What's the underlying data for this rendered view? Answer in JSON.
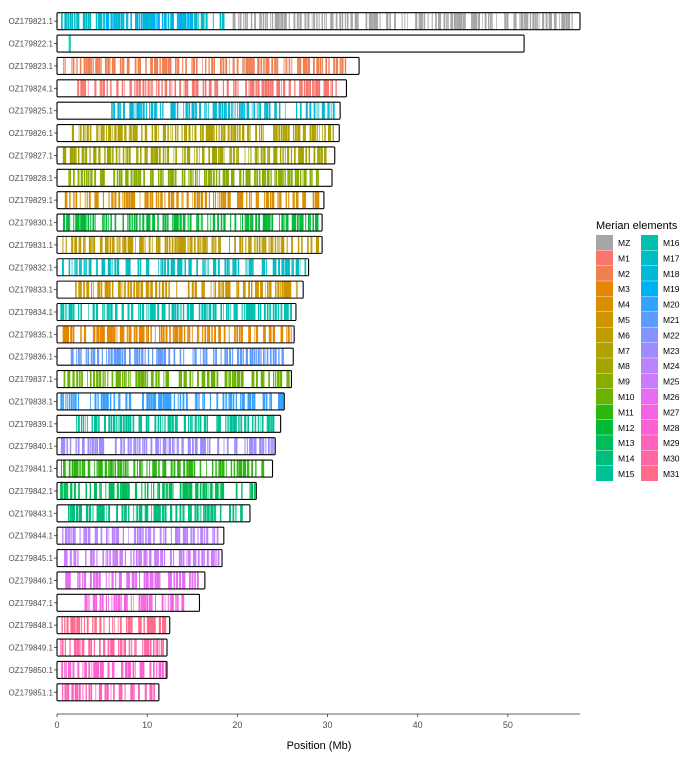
{
  "chart_data": {
    "type": "chromosome-painting",
    "xlabel": "Position (Mb)",
    "xlim": [
      0,
      58
    ],
    "xticks": [
      0,
      10,
      20,
      30,
      40,
      50
    ],
    "legend_title": "Merian elements",
    "legend": [
      {
        "name": "MZ",
        "color": "#a6a6a6"
      },
      {
        "name": "M1",
        "color": "#f8766d"
      },
      {
        "name": "M2",
        "color": "#f07f52"
      },
      {
        "name": "M3",
        "color": "#e58700"
      },
      {
        "name": "M4",
        "color": "#da8f00"
      },
      {
        "name": "M5",
        "color": "#cd9600"
      },
      {
        "name": "M6",
        "color": "#bf9c00"
      },
      {
        "name": "M7",
        "color": "#b0a300"
      },
      {
        "name": "M8",
        "color": "#a3a500"
      },
      {
        "name": "M9",
        "color": "#89ac00"
      },
      {
        "name": "M10",
        "color": "#6bb100"
      },
      {
        "name": "M11",
        "color": "#2db60e"
      },
      {
        "name": "M12",
        "color": "#00ba38"
      },
      {
        "name": "M13",
        "color": "#00bc5a"
      },
      {
        "name": "M14",
        "color": "#00bf7d"
      },
      {
        "name": "M15",
        "color": "#00c097"
      },
      {
        "name": "M16",
        "color": "#00c0af"
      },
      {
        "name": "M17",
        "color": "#00bcc4"
      },
      {
        "name": "M18",
        "color": "#00b8d7"
      },
      {
        "name": "M19",
        "color": "#00b0f6"
      },
      {
        "name": "M20",
        "color": "#35a2ff"
      },
      {
        "name": "M21",
        "color": "#5e9bff"
      },
      {
        "name": "M22",
        "color": "#8494ff"
      },
      {
        "name": "M23",
        "color": "#a08aff"
      },
      {
        "name": "M24",
        "color": "#b983ff"
      },
      {
        "name": "M25",
        "color": "#cc7afd"
      },
      {
        "name": "M26",
        "color": "#e76bf3"
      },
      {
        "name": "M27",
        "color": "#f563e3"
      },
      {
        "name": "M28",
        "color": "#fd61d1"
      },
      {
        "name": "M29",
        "color": "#ff62bc"
      },
      {
        "name": "M30",
        "color": "#ff67a4"
      },
      {
        "name": "M31",
        "color": "#ff6c8b"
      }
    ],
    "chromosomes": [
      {
        "name": "OZ179821.1",
        "length": 58.0,
        "segments": [
          {
            "element": "M17",
            "start": 0.3,
            "end": 18.5
          },
          {
            "element": "M19",
            "start": 5,
            "end": 15
          },
          {
            "element": "MZ",
            "start": 19,
            "end": 57.5
          }
        ]
      },
      {
        "name": "OZ179822.1",
        "length": 51.8,
        "segments": [
          {
            "element": "M16",
            "start": 1.2,
            "end": 1.5
          }
        ]
      },
      {
        "name": "OZ179823.1",
        "length": 33.5,
        "segments": [
          {
            "element": "M2",
            "start": 0.5,
            "end": 32
          }
        ]
      },
      {
        "name": "OZ179824.1",
        "length": 32.1,
        "segments": [
          {
            "element": "M1",
            "start": 2,
            "end": 31
          }
        ]
      },
      {
        "name": "OZ179825.1",
        "length": 31.4,
        "segments": [
          {
            "element": "M18",
            "start": 6,
            "end": 31
          }
        ]
      },
      {
        "name": "OZ179826.1",
        "length": 31.3,
        "segments": [
          {
            "element": "M7",
            "start": 0.5,
            "end": 31
          }
        ]
      },
      {
        "name": "OZ179827.1",
        "length": 30.8,
        "segments": [
          {
            "element": "M8",
            "start": 0.5,
            "end": 30
          }
        ]
      },
      {
        "name": "OZ179828.1",
        "length": 30.5,
        "segments": [
          {
            "element": "M9",
            "start": 0.5,
            "end": 29
          }
        ]
      },
      {
        "name": "OZ179829.1",
        "length": 29.6,
        "segments": [
          {
            "element": "M4",
            "start": 0.5,
            "end": 29
          }
        ]
      },
      {
        "name": "OZ179830.1",
        "length": 29.4,
        "segments": [
          {
            "element": "M12",
            "start": 0.5,
            "end": 29
          }
        ]
      },
      {
        "name": "OZ179831.1",
        "length": 29.4,
        "segments": [
          {
            "element": "M6",
            "start": 0.3,
            "end": 29
          }
        ]
      },
      {
        "name": "OZ179832.1",
        "length": 27.9,
        "segments": [
          {
            "element": "M17",
            "start": 0.5,
            "end": 27.5
          }
        ]
      },
      {
        "name": "OZ179833.1",
        "length": 27.3,
        "segments": [
          {
            "element": "M5",
            "start": 2,
            "end": 27
          }
        ]
      },
      {
        "name": "OZ179834.1",
        "length": 26.5,
        "segments": [
          {
            "element": "M16",
            "start": 0.3,
            "end": 26.3
          }
        ]
      },
      {
        "name": "OZ179835.1",
        "length": 26.3,
        "segments": [
          {
            "element": "M3",
            "start": 0.5,
            "end": 26
          }
        ]
      },
      {
        "name": "OZ179836.1",
        "length": 26.2,
        "segments": [
          {
            "element": "M21",
            "start": 1.5,
            "end": 25
          }
        ]
      },
      {
        "name": "OZ179837.1",
        "length": 26.0,
        "segments": [
          {
            "element": "M10",
            "start": 0.5,
            "end": 25.8
          }
        ]
      },
      {
        "name": "OZ179838.1",
        "length": 25.2,
        "segments": [
          {
            "element": "M20",
            "start": 0.3,
            "end": 25
          }
        ]
      },
      {
        "name": "OZ179839.1",
        "length": 24.8,
        "segments": [
          {
            "element": "M15",
            "start": 2,
            "end": 24
          }
        ]
      },
      {
        "name": "OZ179840.1",
        "length": 24.2,
        "segments": [
          {
            "element": "M23",
            "start": 0.3,
            "end": 24
          }
        ]
      },
      {
        "name": "OZ179841.1",
        "length": 23.9,
        "segments": [
          {
            "element": "M11",
            "start": 0.3,
            "end": 23
          }
        ]
      },
      {
        "name": "OZ179842.1",
        "length": 22.1,
        "segments": [
          {
            "element": "M13",
            "start": 0.3,
            "end": 22
          }
        ]
      },
      {
        "name": "OZ179843.1",
        "length": 21.4,
        "segments": [
          {
            "element": "M14",
            "start": 1,
            "end": 21
          }
        ]
      },
      {
        "name": "OZ179844.1",
        "length": 18.5,
        "segments": [
          {
            "element": "M24",
            "start": 0.5,
            "end": 18
          }
        ]
      },
      {
        "name": "OZ179845.1",
        "length": 18.3,
        "segments": [
          {
            "element": "M25",
            "start": 0.5,
            "end": 18
          }
        ]
      },
      {
        "name": "OZ179846.1",
        "length": 16.4,
        "segments": [
          {
            "element": "M26",
            "start": 0.8,
            "end": 16
          }
        ]
      },
      {
        "name": "OZ179847.1",
        "length": 15.8,
        "segments": [
          {
            "element": "M27",
            "start": 3,
            "end": 14
          }
        ]
      },
      {
        "name": "OZ179848.1",
        "length": 12.5,
        "segments": [
          {
            "element": "M31",
            "start": 0.3,
            "end": 12
          }
        ]
      },
      {
        "name": "OZ179849.1",
        "length": 12.2,
        "segments": [
          {
            "element": "M30",
            "start": 0.3,
            "end": 12
          }
        ]
      },
      {
        "name": "OZ179850.1",
        "length": 12.2,
        "segments": [
          {
            "element": "M28",
            "start": 0.3,
            "end": 12
          }
        ]
      },
      {
        "name": "OZ179851.1",
        "length": 11.3,
        "segments": [
          {
            "element": "M29",
            "start": 0.5,
            "end": 11
          }
        ]
      }
    ]
  }
}
